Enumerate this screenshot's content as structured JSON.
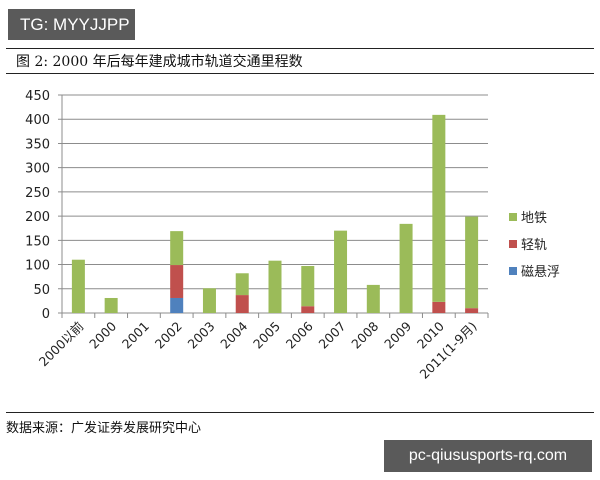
{
  "watermark_top": "TG: MYYJJPP",
  "figure_title": "图 2:  2000 年后每年建成城市轨道交通里程数",
  "source": "数据来源：广发证券发展研究中心",
  "watermark_bottom": "pc-qiususports-rq.com",
  "legend": [
    {
      "label": "地铁",
      "color": "#9bbb59"
    },
    {
      "label": "轻轨",
      "color": "#c0504d"
    },
    {
      "label": "磁悬浮",
      "color": "#4f81bd"
    }
  ],
  "chart_data": {
    "type": "bar",
    "stacked": true,
    "title": "2000年后每年建成城市轨道交通里程数",
    "xlabel": "",
    "ylabel": "",
    "ylim": [
      0,
      450
    ],
    "yticks": [
      0,
      50,
      100,
      150,
      200,
      250,
      300,
      350,
      400,
      450
    ],
    "grid": true,
    "legend_position": "right",
    "categories": [
      "2000以前",
      "2000",
      "2001",
      "2002",
      "2003",
      "2004",
      "2005",
      "2006",
      "2007",
      "2008",
      "2009",
      "2010",
      "2011(1-9月)"
    ],
    "series": [
      {
        "name": "磁悬浮",
        "color": "#4f81bd",
        "values": [
          0,
          0,
          0,
          31,
          0,
          0,
          0,
          0,
          0,
          0,
          0,
          0,
          0
        ]
      },
      {
        "name": "轻轨",
        "color": "#c0504d",
        "values": [
          0,
          0,
          0,
          68,
          0,
          37,
          0,
          14,
          0,
          0,
          0,
          23,
          10
        ]
      },
      {
        "name": "地铁",
        "color": "#9bbb59",
        "values": [
          110,
          31,
          0,
          70,
          51,
          45,
          108,
          83,
          170,
          58,
          184,
          386,
          189
        ]
      }
    ]
  }
}
